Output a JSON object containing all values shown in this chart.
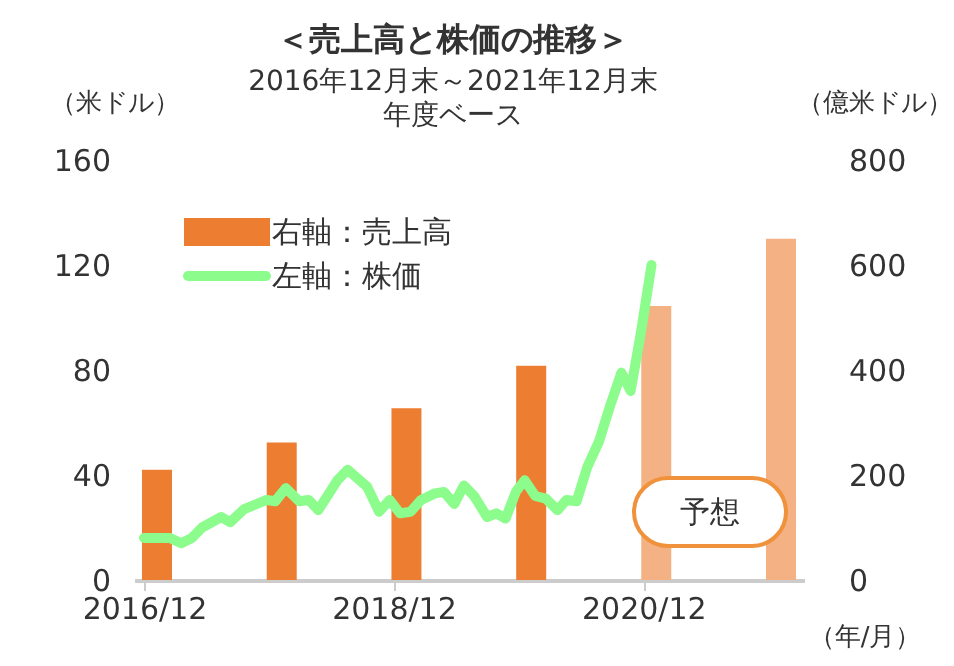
{
  "chart_data": {
    "type": "bar",
    "title": "＜売上高と株価の推移＞",
    "subtitle": "2016年12月末～2021年12月末",
    "xlabel": "（年/月）",
    "ylabel": "（米ドル）",
    "y2label": "（億米ドル）",
    "xlim": [
      "2016-12-01",
      "2022-02-15"
    ],
    "xticks": [
      {
        "value": "2016-12-01",
        "label": "2016/12"
      },
      {
        "value": "2018-12-01",
        "label": "2018/12"
      },
      {
        "value": "2020-12-01",
        "label": "2020/12"
      }
    ],
    "ylim": [
      0,
      160
    ],
    "yticks": [
      0,
      40,
      80,
      120,
      160
    ],
    "y2lim": [
      0,
      800
    ],
    "y2ticks": [
      0,
      200,
      400,
      600,
      800
    ],
    "grid": false,
    "legend": "top left",
    "series": [
      {
        "name": "右軸：売上高",
        "type": "bar",
        "axis": "y2",
        "color": "#ed7d31",
        "x": [
          "2017-01-08",
          "2018-01-08",
          "2019-01-08",
          "2020-01-08",
          "2021-01-08",
          "2022-01-08"
        ],
        "values": [
          210,
          262,
          327,
          408,
          522,
          650
        ],
        "colors": [
          "#ed7d31",
          "#ed7d31",
          "#ed7d31",
          "#ed7d31",
          "#f4b183",
          "#f4b183"
        ]
      },
      {
        "name": "左軸：株価",
        "type": "line",
        "axis": "y",
        "color": "#8cfc8c",
        "line_style": "solid",
        "marker": "none",
        "x": [
          "2016-12-01",
          "2017-02-15",
          "2017-03-20",
          "2017-04-20",
          "2017-05-20",
          "2017-07-15",
          "2017-08-10",
          "2017-09-20",
          "2017-11-25",
          "2017-12-20",
          "2018-01-20",
          "2018-02-28",
          "2018-03-28",
          "2018-04-25",
          "2018-06-20",
          "2018-07-20",
          "2018-09-15",
          "2018-10-20",
          "2018-11-20",
          "2018-12-20",
          "2019-01-20",
          "2019-02-20",
          "2019-04-01",
          "2019-04-28",
          "2019-05-28",
          "2019-06-25",
          "2019-07-25",
          "2019-09-01",
          "2019-09-28",
          "2019-10-25",
          "2019-11-25",
          "2019-12-20",
          "2020-01-20",
          "2020-02-20",
          "2020-03-25",
          "2020-04-20",
          "2020-05-20",
          "2020-06-20",
          "2020-07-25",
          "2020-08-25",
          "2020-09-28",
          "2020-10-25",
          "2020-11-25",
          "2020-12-25"
        ],
        "values": [
          16,
          16,
          14,
          16,
          20,
          24,
          22,
          27,
          30.5,
          30,
          35,
          30,
          30.5,
          26.6,
          38,
          42,
          35.5,
          26,
          30.5,
          25.4,
          26,
          30.5,
          33,
          33.5,
          29,
          36,
          32,
          24,
          25.4,
          23.4,
          33.8,
          38,
          32,
          31,
          26.6,
          30.5,
          30,
          43,
          53,
          66,
          79,
          72,
          95,
          120
        ]
      }
    ],
    "annotations": [
      "年度ベース",
      "予想"
    ]
  }
}
